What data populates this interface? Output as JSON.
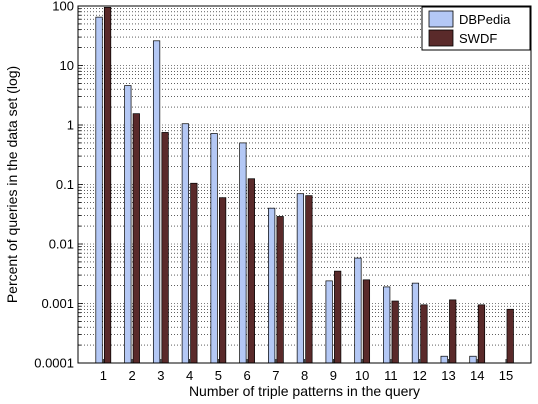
{
  "chart_data": {
    "type": "bar",
    "title": "",
    "xlabel": "Number of triple patterns in the query",
    "ylabel": "Percent of queries in the data set (log)",
    "y_scale": "log",
    "ylim": [
      0.0001,
      100
    ],
    "y_tick_labels": [
      "0.0001",
      "0.001",
      "0.01",
      "0.1",
      "1",
      "10",
      "100"
    ],
    "categories": [
      "1",
      "2",
      "3",
      "4",
      "5",
      "6",
      "7",
      "8",
      "9",
      "10",
      "11",
      "12",
      "13",
      "14",
      "15"
    ],
    "grid": "y major and minor, dotted",
    "legend_position": "top-right",
    "series": [
      {
        "name": "DBPedia",
        "color": "#b4c8f5",
        "values": [
          65,
          4.6,
          26,
          1.05,
          0.72,
          0.5,
          0.04,
          0.07,
          0.0024,
          0.0058,
          0.0019,
          0.0022,
          0.00013,
          0.00013,
          null
        ]
      },
      {
        "name": "SWDF",
        "color": "#5a2a2a",
        "values": [
          95,
          1.55,
          0.75,
          0.105,
          0.06,
          0.125,
          0.029,
          0.065,
          0.0035,
          0.0025,
          0.0011,
          0.00095,
          0.00115,
          0.00095,
          0.0008
        ]
      }
    ]
  }
}
